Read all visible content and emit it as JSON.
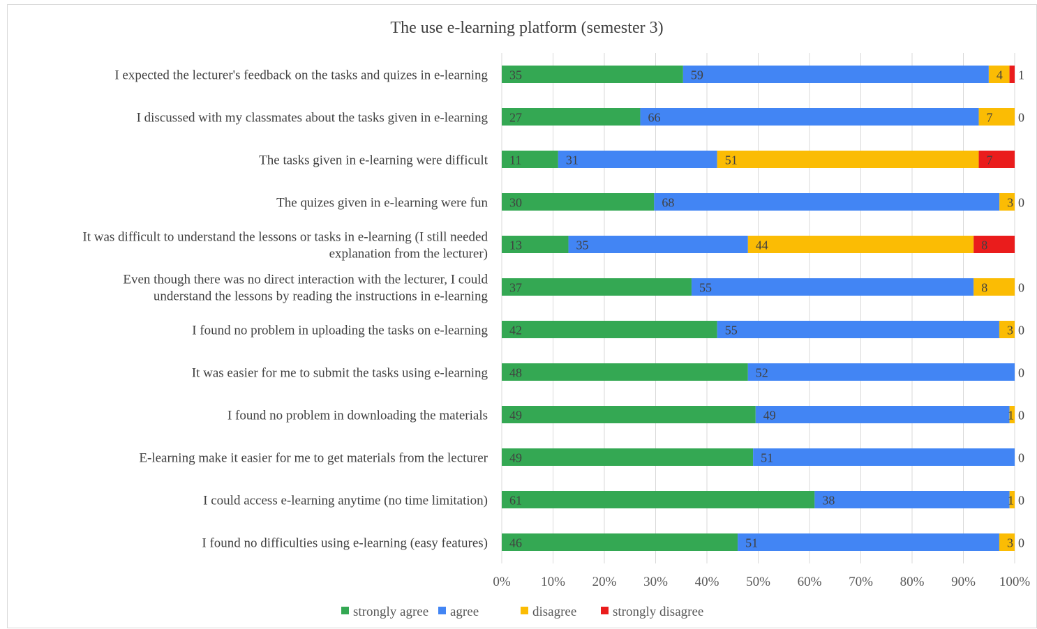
{
  "chart_data": {
    "type": "bar",
    "orientation": "horizontal",
    "stacked": "percent",
    "title": "The use e-learning platform (semester 3)",
    "categories": [
      "I expected the lecturer's feedback on the tasks and quizes in e-learning",
      "I discussed with my classmates about the tasks given in e-learning",
      "The tasks given in e-learning were difficult",
      "The quizes given in e-learning were fun",
      "It was difficult to understand the lessons or tasks in e-learning (I still needed explanation from the lecturer)",
      "Even though there was no direct interaction with the lecturer, I  could understand the lessons by reading the instructions in e-learning",
      "I found no problem in uploading the tasks on e-learning",
      "It was easier for me to submit the tasks using e-learning",
      "I found no problem in downloading the materials",
      "E-learning make it easier for me to get materials from the lecturer",
      "I could access e-learning anytime (no time limitation)",
      "I found no difficulties using e-learning (easy features)"
    ],
    "category_lines": [
      [
        "I expected the lecturer's feedback on the tasks and quizes in e-learning"
      ],
      [
        "I discussed with my classmates about the tasks given in e-learning"
      ],
      [
        "The tasks given in e-learning were difficult"
      ],
      [
        "The quizes given in e-learning were fun"
      ],
      [
        "It was difficult to understand the lessons or tasks in e-learning (I still needed",
        "explanation from the lecturer)"
      ],
      [
        "Even though there was no direct interaction with the lecturer, I  could",
        "understand the lessons by reading the instructions in e-learning"
      ],
      [
        "I found no problem in uploading the tasks on e-learning"
      ],
      [
        "It was easier for me to submit the tasks using e-learning"
      ],
      [
        "I found no problem in downloading the materials"
      ],
      [
        "E-learning make it easier for me to get materials from the lecturer"
      ],
      [
        "I could access e-learning anytime (no time limitation)"
      ],
      [
        "I found no difficulties using e-learning (easy features)"
      ]
    ],
    "series": [
      {
        "name": "strongly agree",
        "color": "#34a853",
        "values": [
          35,
          27,
          11,
          30,
          13,
          37,
          42,
          48,
          49,
          49,
          61,
          46
        ]
      },
      {
        "name": "agree",
        "color": "#4285f4",
        "values": [
          59,
          66,
          31,
          68,
          35,
          55,
          55,
          52,
          49,
          51,
          38,
          51
        ]
      },
      {
        "name": "disagree",
        "color": "#fbbc04",
        "values": [
          4,
          7,
          51,
          3,
          44,
          8,
          3,
          0,
          1,
          0,
          1,
          3
        ]
      },
      {
        "name": "strongly disagree",
        "color": "#ea1c1c",
        "values": [
          1,
          0,
          7,
          0,
          8,
          0,
          0,
          0,
          0,
          0,
          0,
          0
        ]
      }
    ],
    "series_data_labels": [
      [
        "35",
        "27",
        "11",
        "30",
        "13",
        "37",
        "42",
        "48",
        "49",
        "49",
        "61",
        "46"
      ],
      [
        "59",
        "66",
        "31",
        "68",
        "35",
        "55",
        "55",
        "52",
        "49",
        "51",
        "38",
        "51"
      ],
      [
        "4",
        "7",
        "51",
        "3",
        "44",
        "8",
        "3",
        "",
        "1",
        "",
        "1",
        "3"
      ],
      [
        "1",
        "0",
        "7",
        "0",
        "8",
        "0",
        "0",
        "0",
        "0",
        "0",
        "0",
        "0"
      ]
    ],
    "x_ticks": [
      "0%",
      "10%",
      "20%",
      "30%",
      "40%",
      "50%",
      "60%",
      "70%",
      "80%",
      "90%",
      "100%"
    ],
    "xlim": [
      0,
      100
    ],
    "grid": true,
    "legend_position": "bottom"
  }
}
